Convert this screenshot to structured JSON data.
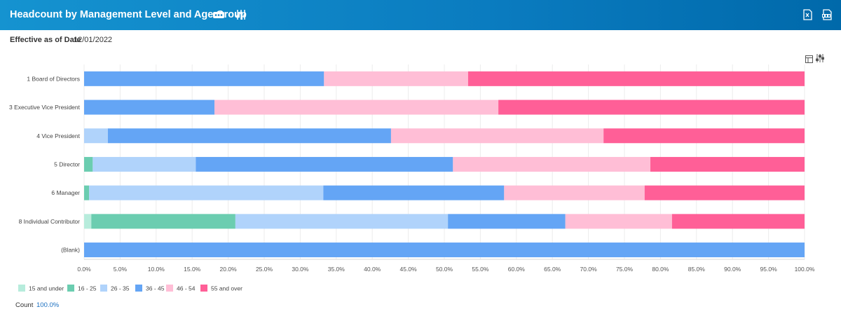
{
  "header": {
    "title": "Headcount by Management Level and Age Group"
  },
  "filter": {
    "label": "Effective as of Date",
    "value": "12/01/2022"
  },
  "footer": {
    "count_label": "Count",
    "count_value": "100.0%"
  },
  "icons": {
    "more": "more-dots-icon",
    "settings": "sliders-icon",
    "excel": "export-excel-icon",
    "pdf": "export-pdf-icon",
    "table": "table-view-icon",
    "chart_settings": "chart-settings-icon"
  },
  "chart_data": {
    "type": "bar",
    "orientation": "horizontal",
    "stacked": true,
    "normalized": true,
    "categories": [
      "1 Board of Directors",
      "3 Executive Vice President",
      "4 Vice President",
      "5 Director",
      "6 Manager",
      "8 Individual Contributor",
      "(Blank)"
    ],
    "series": [
      {
        "name": "15 and under",
        "color": "#b7ecdc",
        "values": [
          0,
          0,
          0,
          0,
          0,
          1.0,
          0
        ]
      },
      {
        "name": "16 - 25",
        "color": "#6bcdb0",
        "values": [
          0,
          0,
          0,
          1.2,
          0.7,
          20.0,
          0
        ]
      },
      {
        "name": "26 - 35",
        "color": "#b0d3fb",
        "values": [
          0,
          0,
          3.3,
          14.3,
          32.5,
          29.5,
          0
        ]
      },
      {
        "name": "36 - 45",
        "color": "#64a5f5",
        "values": [
          33.3,
          18.1,
          39.3,
          35.7,
          25.1,
          16.3,
          100
        ]
      },
      {
        "name": "46 - 54",
        "color": "#ffbed6",
        "values": [
          20.0,
          39.4,
          29.5,
          27.4,
          19.5,
          14.8,
          0
        ]
      },
      {
        "name": "55 and over",
        "color": "#ff5f97",
        "values": [
          46.7,
          42.5,
          27.9,
          21.4,
          22.2,
          18.4,
          0
        ]
      }
    ],
    "x_ticks": [
      "0.0%",
      "5.0%",
      "10.0%",
      "15.0%",
      "20.0%",
      "25.0%",
      "30.0%",
      "35.0%",
      "40.0%",
      "45.0%",
      "50.0%",
      "55.0%",
      "60.0%",
      "65.0%",
      "70.0%",
      "75.0%",
      "80.0%",
      "85.0%",
      "90.0%",
      "95.0%",
      "100.0%"
    ],
    "xlim": [
      0,
      100
    ],
    "grid": true,
    "legend_position": "bottom-left"
  }
}
